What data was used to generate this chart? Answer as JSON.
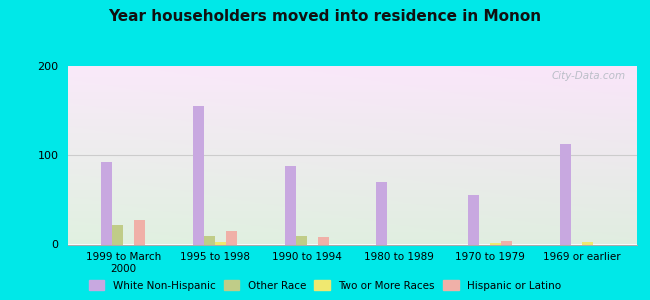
{
  "title": "Year householders moved into residence in Monon",
  "categories": [
    "1999 to March\n2000",
    "1995 to 1998",
    "1990 to 1994",
    "1980 to 1989",
    "1970 to 1979",
    "1969 or earlier"
  ],
  "series": {
    "White Non-Hispanic": [
      92,
      155,
      88,
      70,
      55,
      113
    ],
    "Other Race": [
      22,
      10,
      9,
      0,
      0,
      0
    ],
    "Two or More Races": [
      0,
      3,
      0,
      0,
      2,
      3
    ],
    "Hispanic or Latino": [
      27,
      15,
      8,
      0,
      4,
      0
    ]
  },
  "colors": {
    "White Non-Hispanic": "#c8a8e0",
    "Other Race": "#c0cc88",
    "Two or More Races": "#f0e870",
    "Hispanic or Latino": "#f0b0a8"
  },
  "ylim": [
    0,
    200
  ],
  "yticks": [
    0,
    100,
    200
  ],
  "bar_width": 0.12,
  "outer_bg": "#00e8e8",
  "watermark": "City-Data.com"
}
